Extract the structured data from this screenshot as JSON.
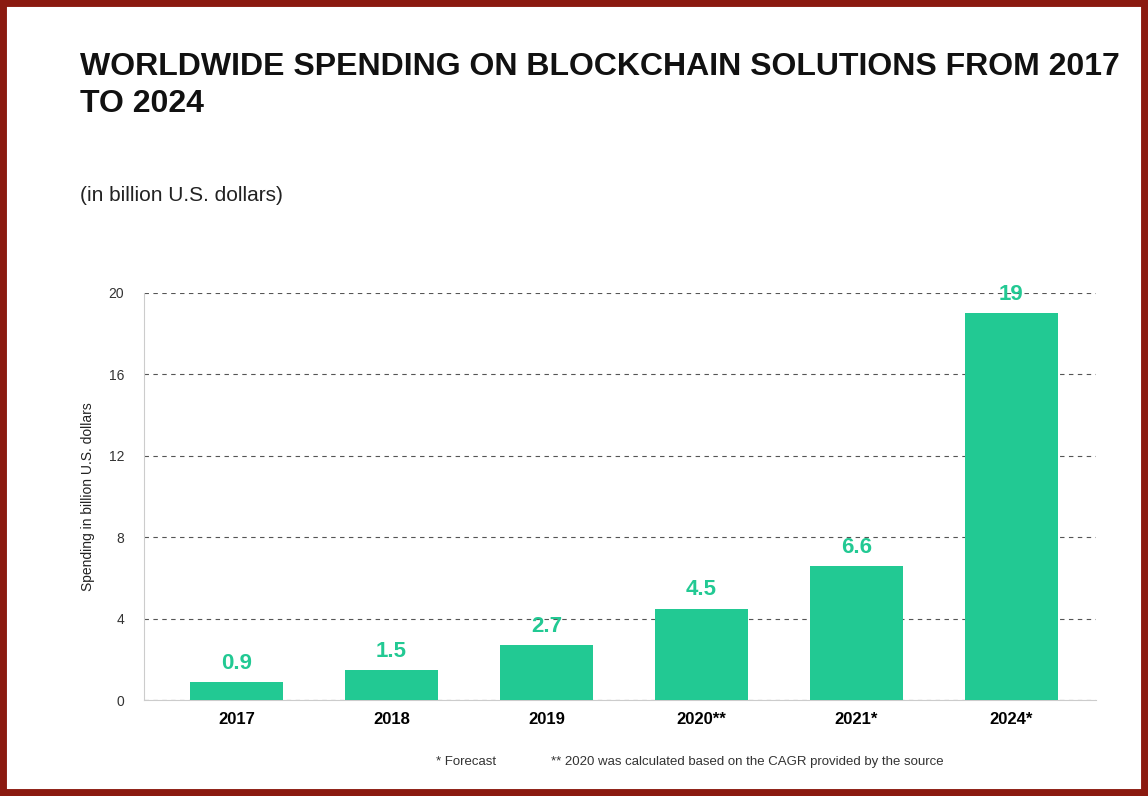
{
  "chart_data": {
    "type": "bar",
    "title": "WORLDWIDE SPENDING ON BLOCKCHAIN SOLUTIONS FROM 2017 TO 2024",
    "subtitle": "(in billion U.S. dollars)",
    "y_label": "Spending in billion U.S. dollars",
    "categories": [
      "2017",
      "2018",
      "2019",
      "2020**",
      "2021*",
      "2024*"
    ],
    "values": [
      0.9,
      1.5,
      2.7,
      4.5,
      6.6,
      19
    ],
    "color": "#22c993",
    "ylim": [
      0,
      20
    ],
    "yticks": [
      0,
      4,
      8,
      12,
      16,
      20
    ],
    "grid": true,
    "data_labels": true,
    "notes": [
      "* Forecast",
      "** 2020 was calculated based on the CAGR provided by the source"
    ]
  }
}
